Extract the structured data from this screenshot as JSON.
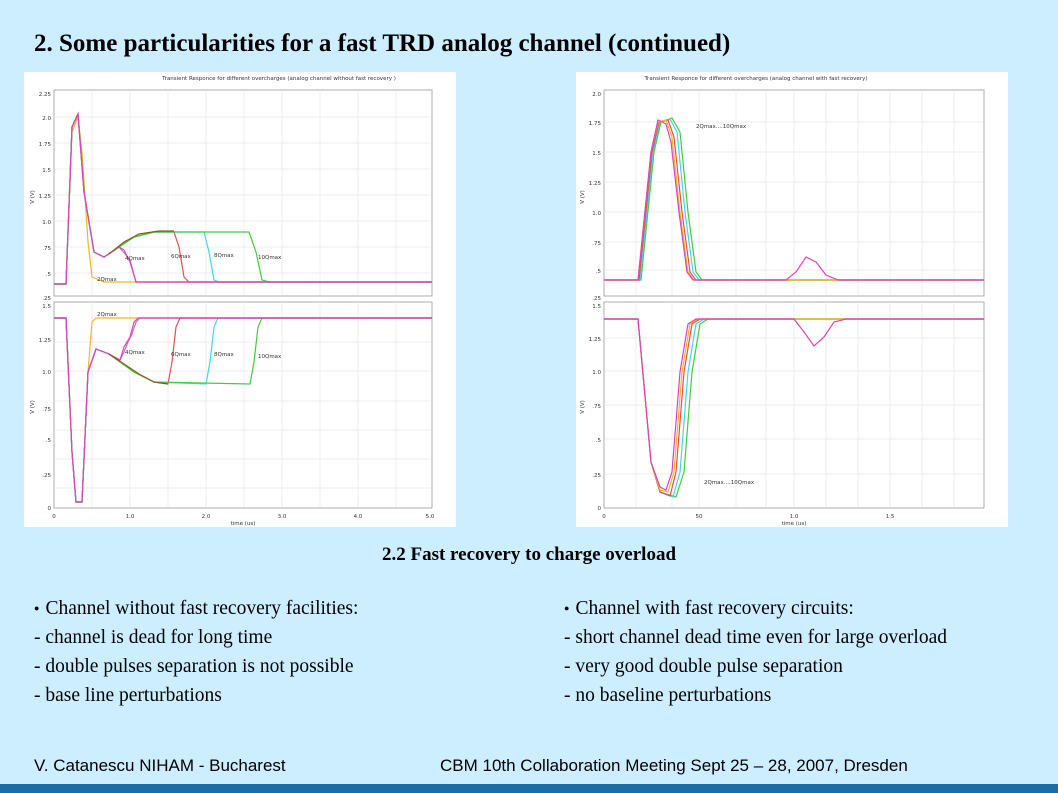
{
  "title": "2. Some particularities for a fast TRD analog channel (continued)",
  "subtitle": "2.2 Fast recovery to charge overload",
  "left_panel": {
    "caption": "Transient Responce for different overcharges (analog channel without fast recovery )",
    "xlabel": "time (us)",
    "ylabel": "V (V)",
    "top_ticks": [
      "2.25",
      "2.0",
      "1.75",
      "1.5",
      "1.25",
      "1.0",
      ".75",
      ".5",
      ".25"
    ],
    "bottom_ticks": [
      "1.5",
      "1.25",
      "1.0",
      ".75",
      ".5",
      ".25",
      "0"
    ],
    "x_ticks": [
      "0",
      "1.0",
      "2.0",
      "3.0",
      "4.0",
      "5.0"
    ],
    "top_labels": [
      "4Qmax",
      "6Qmax",
      "8Qmax",
      "10Qmax",
      "2Qmax"
    ],
    "bottom_labels": [
      "2Qmax",
      "4Qmax",
      "6Qmax",
      "8Qmax",
      "10Qmax"
    ]
  },
  "right_panel": {
    "caption": "Transient Responce for different overcharges (analog channel with fast recovery)",
    "xlabel": "time (us)",
    "ylabel": "V (V)",
    "top_ticks": [
      "2.0",
      "1.75",
      "1.5",
      "1.25",
      "1.0",
      ".75",
      ".5",
      ".25"
    ],
    "bottom_ticks": [
      "1.5",
      "1.25",
      "1.0",
      ".75",
      ".5",
      ".25",
      "0"
    ],
    "x_ticks": [
      "0",
      "50",
      "1.0",
      "1.5"
    ],
    "top_label": "2Qmax....10Qmax",
    "bottom_label": "2Qmax....10Qmax"
  },
  "colors": {
    "q2": "#f0b820",
    "q4": "#c070c0",
    "q6": "#e05050",
    "q8": "#40d8e8",
    "q10": "#40cc40",
    "brown": "#8a5a1a",
    "magenta": "#e040c0"
  },
  "left_bullets": {
    "head": "Channel without fast recovery facilities:",
    "items": [
      "- channel is dead for long time",
      "- double pulses separation is not possible",
      "- base line perturbations"
    ]
  },
  "right_bullets": {
    "head": "Channel with fast recovery circuits:",
    "items": [
      "- short channel dead time even for large overload",
      "- very good double pulse separation",
      "- no baseline perturbations"
    ]
  },
  "footer": {
    "author": "V. Catanescu   NIHAM  - Bucharest",
    "meeting": "CBM 10th Collaboration Meeting    Sept 25 – 28, 2007, Dresden"
  }
}
